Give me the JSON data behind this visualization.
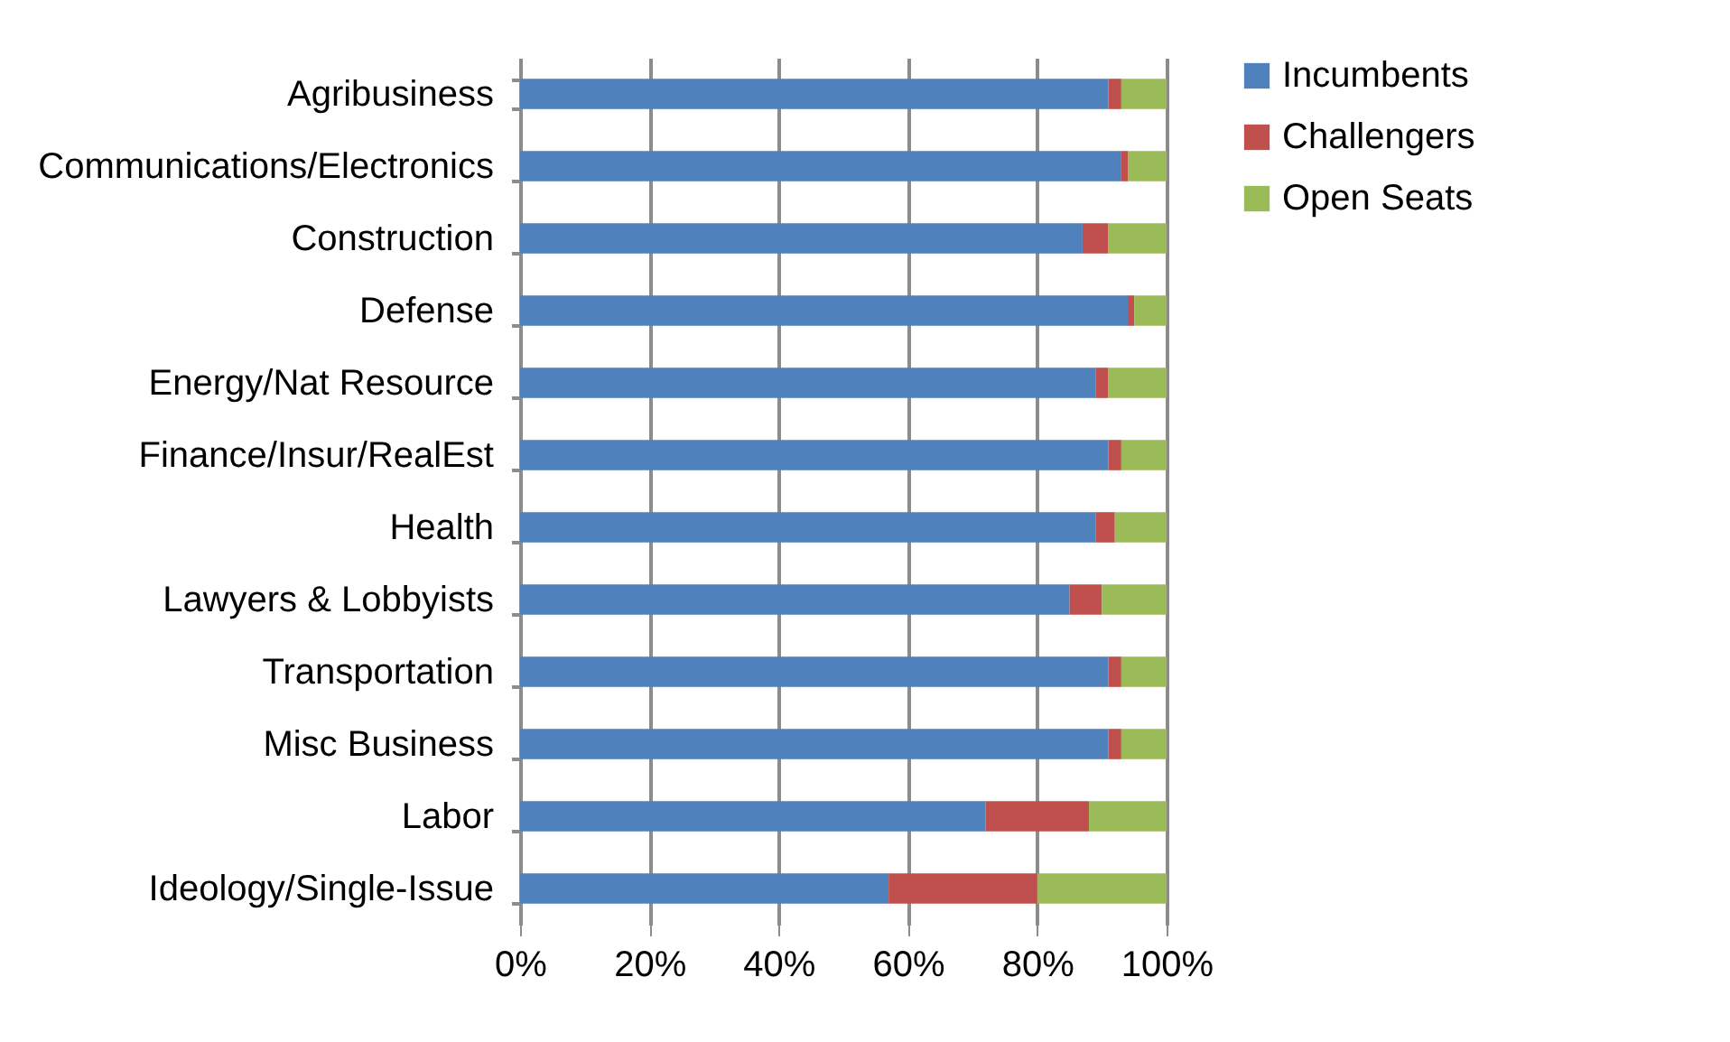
{
  "chart_data": {
    "type": "bar",
    "orientation": "horizontal",
    "stacked": true,
    "categories": [
      "Agribusiness",
      "Communications/Electronics",
      "Construction",
      "Defense",
      "Energy/Nat Resource",
      "Finance/Insur/RealEst",
      "Health",
      "Lawyers & Lobbyists",
      "Transportation",
      "Misc Business",
      "Labor",
      "Ideology/Single-Issue"
    ],
    "series": [
      {
        "name": "Incumbents",
        "color": "#4f81bd",
        "values": [
          91,
          93,
          87,
          94,
          89,
          91,
          89,
          85,
          91,
          91,
          72,
          57
        ]
      },
      {
        "name": "Challengers",
        "color": "#c0504d",
        "values": [
          2,
          1,
          4,
          1,
          2,
          2,
          3,
          5,
          2,
          2,
          16,
          23
        ]
      },
      {
        "name": "Open Seats",
        "color": "#9bbb59",
        "values": [
          7,
          6,
          9,
          5,
          9,
          7,
          8,
          10,
          7,
          7,
          12,
          20
        ]
      }
    ],
    "xlim": [
      0,
      100
    ],
    "xticks": [
      {
        "value": 0,
        "label": "0%"
      },
      {
        "value": 20,
        "label": "20%"
      },
      {
        "value": 40,
        "label": "40%"
      },
      {
        "value": 60,
        "label": "60%"
      },
      {
        "value": 80,
        "label": "80%"
      },
      {
        "value": 100,
        "label": "100%"
      }
    ],
    "grid": "x",
    "legend": "right"
  }
}
